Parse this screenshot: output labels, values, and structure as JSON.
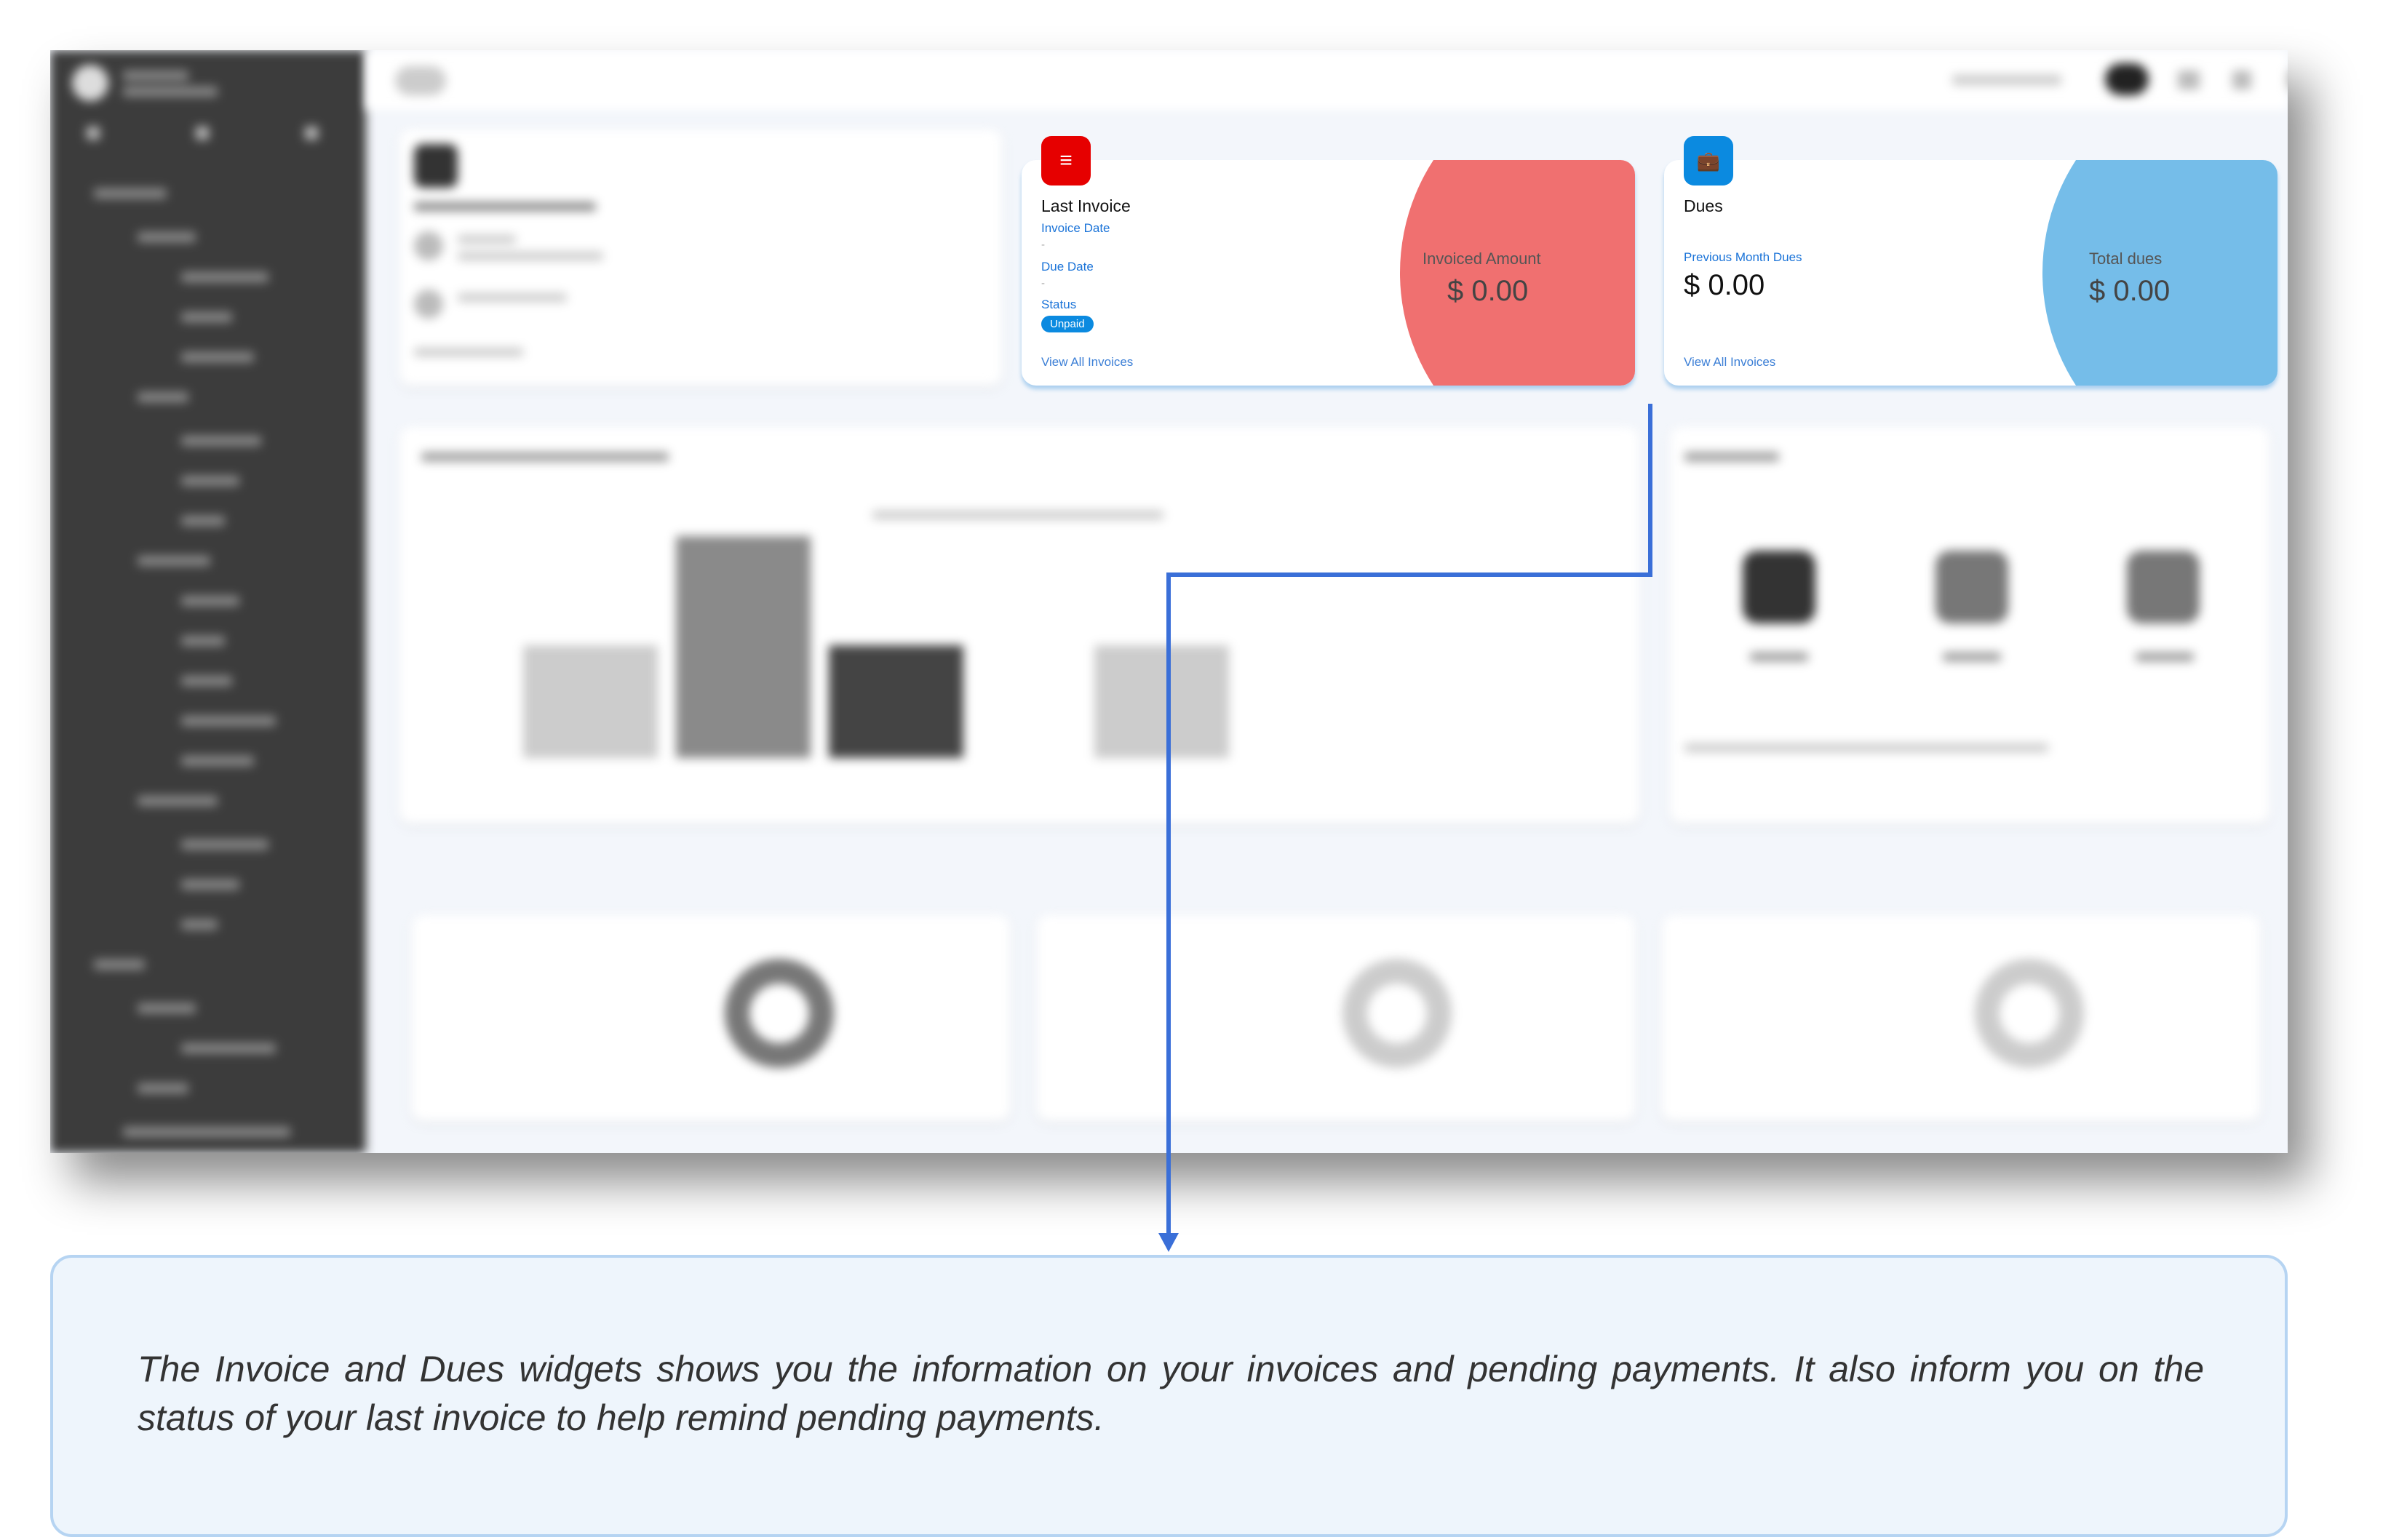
{
  "last_invoice": {
    "title": "Last Invoice",
    "invoice_date_label": "Invoice Date",
    "invoice_date": "-",
    "due_date_label": "Due Date",
    "due_date": "-",
    "status_label": "Status",
    "status": "Unpaid",
    "link": "View All Invoices",
    "amount_label": "Invoiced Amount",
    "amount": "$ 0.00",
    "icon": "list-icon",
    "color": "#f07070",
    "icon_color": "#e60000"
  },
  "dues": {
    "title": "Dues",
    "prev_label": "Previous Month Dues",
    "prev_amount": "$ 0.00",
    "link": "View All Invoices",
    "total_label": "Total dues",
    "total_amount": "$ 0.00",
    "icon": "briefcase-icon",
    "color": "#75bde9",
    "icon_color": "#0b8ae0"
  },
  "callout": {
    "text": "The Invoice and Dues widgets shows you the information on your invoices and pending payments. It also inform you on the status of your last invoice to help remind pending payments."
  },
  "colors": {
    "connector": "#3a6fd8"
  }
}
